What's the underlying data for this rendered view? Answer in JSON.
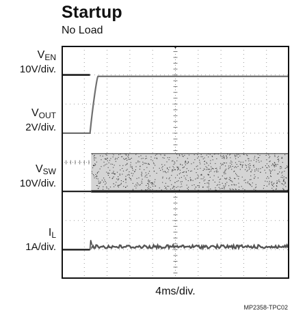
{
  "chart_data": {
    "type": "line",
    "title": "Startup",
    "subtitle": "No Load",
    "xlabel": "4ms/div.",
    "figure_id": "MP2358-TPC02",
    "grid": true,
    "divisions": {
      "x": 10,
      "y": 8
    },
    "series": [
      {
        "key": "ven",
        "name_main": "V",
        "name_sub": "EN",
        "scale": "10V/div.",
        "color": "#111111",
        "style": "step",
        "baseline_div": 7.0,
        "high_div": 8.0,
        "step_time_div": 1.25
      },
      {
        "key": "vout",
        "name_main": "V",
        "name_sub": "OUT",
        "scale": "2V/div.",
        "color": "#6f6f6f",
        "style": "soft-start",
        "baseline_div": 5.0,
        "high_div": 6.95,
        "step_time_div": 1.25,
        "rise_time_div": 0.35
      },
      {
        "key": "vsw",
        "name_main": "V",
        "name_sub": "SW",
        "scale": "10V/div.",
        "color": "#222222",
        "style": "switching",
        "baseline_div": 3.0,
        "high_div": 4.3,
        "step_time_div": 1.3
      },
      {
        "key": "il",
        "name_main": "I",
        "name_sub": "L",
        "scale": "1A/div.",
        "color": "#555555",
        "style": "ripple",
        "baseline_div": 1.0,
        "high_div": 1.1,
        "step_time_div": 1.25
      }
    ]
  }
}
